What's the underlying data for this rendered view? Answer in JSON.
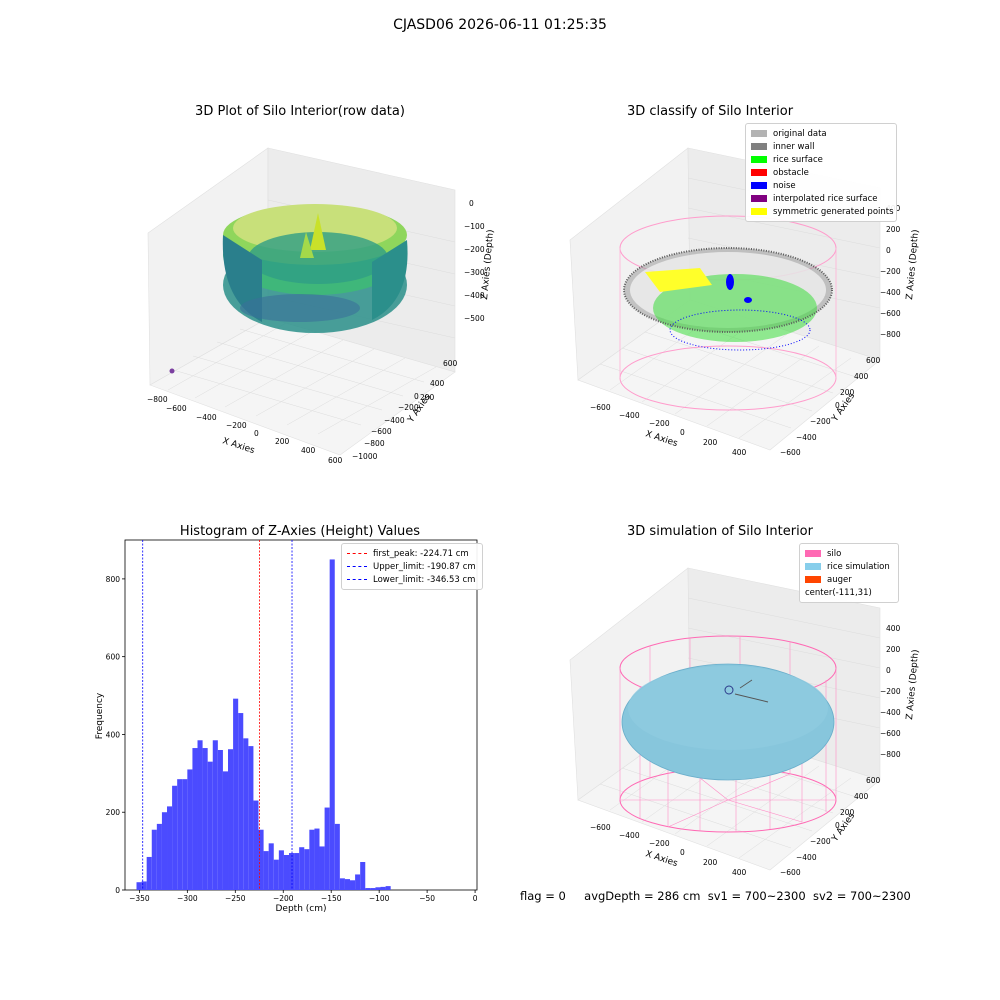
{
  "figure_title": "CJASD06 2026-06-11 01:25:35",
  "panels": {
    "raw": {
      "title": "3D Plot of Silo Interior(row data)",
      "xlabel": "X Axies",
      "ylabel": "Y Axies",
      "zlabel": "Z Axies (Depth)",
      "xticks": [
        "−800",
        "−600",
        "−400",
        "−200",
        "0",
        "200",
        "400",
        "600"
      ],
      "yticks": [
        "600",
        "400",
        "200",
        "0",
        "−200",
        "−400",
        "−600",
        "−800",
        "−1000"
      ],
      "zticks": [
        "0",
        "−100",
        "−200",
        "−300",
        "−400",
        "−500"
      ]
    },
    "classify": {
      "title": "3D classify of Silo Interior",
      "xlabel": "X Axies",
      "ylabel": "Y Axies",
      "zlabel": "Z Axies (Depth)",
      "xticks": [
        "−600",
        "−400",
        "−200",
        "0",
        "200",
        "400"
      ],
      "yticks": [
        "600",
        "400",
        "200",
        "0",
        "−200",
        "−400",
        "−600"
      ],
      "zticks": [
        "400",
        "200",
        "0",
        "−200",
        "−400",
        "−600",
        "−800"
      ],
      "legend": [
        {
          "label": "original data",
          "color": "#b3b3b3"
        },
        {
          "label": "inner wall",
          "color": "#808080"
        },
        {
          "label": "rice surface",
          "color": "#00ff00"
        },
        {
          "label": "obstacle",
          "color": "#ff0000"
        },
        {
          "label": "noise",
          "color": "#0000ff"
        },
        {
          "label": "interpolated rice surface",
          "color": "#800080"
        },
        {
          "label": "symmetric generated points",
          "color": "#ffff00"
        }
      ]
    },
    "simulation": {
      "title": "3D simulation of Silo Interior",
      "xlabel": "X Axies",
      "ylabel": "Y Axies",
      "zlabel": "Z Axies (Depth)",
      "xticks": [
        "−600",
        "−400",
        "−200",
        "0",
        "200",
        "400"
      ],
      "yticks": [
        "600",
        "400",
        "200",
        "0",
        "−200",
        "−400",
        "−600"
      ],
      "zticks": [
        "400",
        "200",
        "0",
        "−200",
        "−400",
        "−600",
        "−800"
      ],
      "legend": [
        {
          "label": "silo",
          "color": "#ff69b4"
        },
        {
          "label": "rice simulation",
          "color": "#87ceeb"
        },
        {
          "label": "auger",
          "color": "#ff4500"
        },
        {
          "label": "center(-111,31)",
          "color": ""
        }
      ]
    }
  },
  "footer": {
    "flag": "flag = 0",
    "avg": "avgDepth = 286 cm",
    "sv1": "sv1 = 700~2300",
    "sv2": "sv2 = 700~2300"
  },
  "chart_data": [
    {
      "type": "bar",
      "title": "Histogram of Z-Axies (Height) Values",
      "xlabel": "Depth (cm)",
      "ylabel": "Frequency",
      "xlim": [
        -365,
        2
      ],
      "ylim": [
        0,
        900
      ],
      "xticks": [
        -350,
        -300,
        -250,
        -200,
        -150,
        -100,
        -50,
        0
      ],
      "yticks": [
        0,
        200,
        400,
        600,
        800
      ],
      "bar_color": "#4b4bff",
      "bin_start": -353,
      "bin_width": 5.3,
      "values": [
        20,
        22,
        85,
        155,
        170,
        200,
        215,
        268,
        285,
        285,
        310,
        365,
        385,
        365,
        330,
        385,
        360,
        305,
        362,
        492,
        455,
        390,
        370,
        230,
        155,
        100,
        120,
        78,
        102,
        90,
        95,
        95,
        110,
        105,
        155,
        158,
        112,
        212,
        850,
        170,
        30,
        28,
        25,
        40,
        72,
        5,
        5,
        7,
        8,
        10
      ],
      "vlines": [
        {
          "label": "first_peak: -224.71 cm",
          "x": -224.71,
          "color": "#ff0000"
        },
        {
          "label": "Upper_limit: -190.87 cm",
          "x": -190.87,
          "color": "#0000ff"
        },
        {
          "label": "Lower_limit: -346.53 cm",
          "x": -346.53,
          "color": "#0000ff"
        }
      ]
    }
  ]
}
